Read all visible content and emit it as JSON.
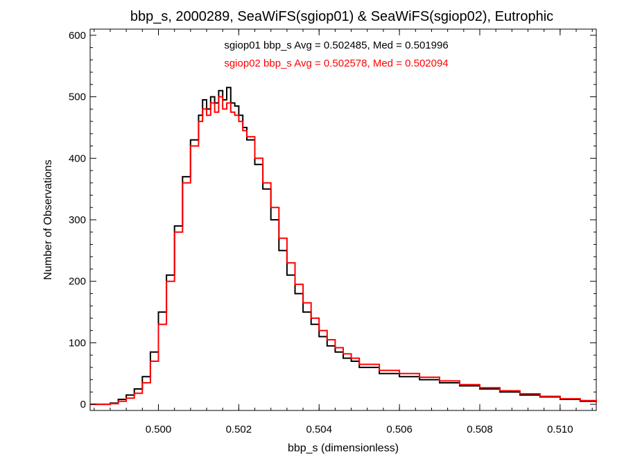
{
  "chart_data": {
    "type": "line",
    "style": "step-histogram",
    "title": "bbp_s, 2000289, SeaWiFS(sgiop01) & SeaWiFS(sgiop02), Eutrophic",
    "xlabel": "bbp_s (dimensionless)",
    "ylabel": "Number of Observations",
    "xlim": [
      0.4983,
      0.5109
    ],
    "ylim": [
      -10,
      610
    ],
    "x_ticks": [
      0.5,
      0.502,
      0.504,
      0.506,
      0.508,
      0.51
    ],
    "x_tick_labels": [
      "0.500",
      "0.502",
      "0.504",
      "0.506",
      "0.508",
      "0.510"
    ],
    "y_ticks": [
      0,
      100,
      200,
      300,
      400,
      500,
      600
    ],
    "y_tick_labels": [
      "0",
      "100",
      "200",
      "300",
      "400",
      "500",
      "600"
    ],
    "grid": false,
    "annotations": [
      {
        "text": "sgiop01 bbp_s Avg = 0.502485, Med = 0.501996",
        "color": "#000000"
      },
      {
        "text": "sgiop02 bbp_s Avg = 0.502578, Med = 0.502094",
        "color": "#ff0000"
      }
    ],
    "series": [
      {
        "color": "#000000",
        "x": [
          0.4983,
          0.4988,
          0.499,
          0.4992,
          0.4994,
          0.4996,
          0.4998,
          0.5,
          0.5002,
          0.5004,
          0.5006,
          0.5008,
          0.501,
          0.5011,
          0.5012,
          0.5013,
          0.5014,
          0.5015,
          0.5016,
          0.5017,
          0.5018,
          0.5019,
          0.502,
          0.5021,
          0.5022,
          0.5024,
          0.5026,
          0.5028,
          0.503,
          0.5032,
          0.5034,
          0.5036,
          0.5038,
          0.504,
          0.5042,
          0.5044,
          0.5046,
          0.5048,
          0.505,
          0.5055,
          0.506,
          0.5065,
          0.507,
          0.5075,
          0.508,
          0.5085,
          0.509,
          0.5095,
          0.51,
          0.5105,
          0.5109
        ],
        "values": [
          0,
          2,
          8,
          15,
          25,
          45,
          85,
          150,
          210,
          290,
          370,
          430,
          470,
          495,
          480,
          500,
          490,
          510,
          495,
          515,
          490,
          485,
          470,
          450,
          430,
          390,
          350,
          300,
          250,
          210,
          180,
          150,
          130,
          110,
          95,
          85,
          75,
          70,
          60,
          50,
          45,
          40,
          35,
          30,
          25,
          20,
          15,
          12,
          8,
          5,
          3
        ]
      },
      {
        "color": "#ff0000",
        "x": [
          0.4983,
          0.4988,
          0.499,
          0.4992,
          0.4994,
          0.4996,
          0.4998,
          0.5,
          0.5002,
          0.5004,
          0.5006,
          0.5008,
          0.501,
          0.5011,
          0.5012,
          0.5013,
          0.5014,
          0.5015,
          0.5016,
          0.5017,
          0.5018,
          0.5019,
          0.502,
          0.5021,
          0.5022,
          0.5024,
          0.5026,
          0.5028,
          0.503,
          0.5032,
          0.5034,
          0.5036,
          0.5038,
          0.504,
          0.5042,
          0.5044,
          0.5046,
          0.5048,
          0.505,
          0.5055,
          0.506,
          0.5065,
          0.507,
          0.5075,
          0.508,
          0.5085,
          0.509,
          0.5095,
          0.51,
          0.5105,
          0.5109
        ],
        "values": [
          0,
          1,
          5,
          10,
          18,
          35,
          70,
          130,
          200,
          280,
          360,
          420,
          460,
          480,
          470,
          490,
          475,
          500,
          480,
          490,
          475,
          470,
          460,
          445,
          435,
          400,
          360,
          320,
          270,
          230,
          195,
          165,
          140,
          120,
          105,
          92,
          82,
          75,
          65,
          55,
          50,
          44,
          38,
          32,
          27,
          22,
          17,
          13,
          9,
          6,
          3
        ]
      }
    ]
  }
}
